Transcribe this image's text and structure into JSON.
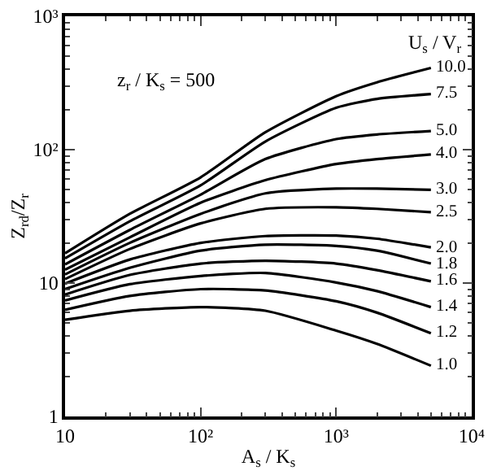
{
  "chart_data": {
    "type": "line",
    "xlabel": "A$_{s}$ / K$_{s}$",
    "ylabel": "Z$_{rd}$/Z$_{r}$",
    "legend_title": "U$_{s}$ / V$_{r}$",
    "annotations": [
      "z$_{r}$ / K$_{s}$ = 500"
    ],
    "log": "xy",
    "grid": false,
    "legend": false,
    "marker": "none",
    "line_style": "solid",
    "xlim": [
      10,
      10000
    ],
    "xticks": [
      10,
      {
        "value": 100,
        "label": "10²"
      },
      {
        "value": 1000,
        "label": "10³"
      },
      {
        "value": 10000,
        "label": "10⁴"
      }
    ],
    "ylim": [
      1,
      1000
    ],
    "yticks": [
      1,
      10,
      {
        "value": 100,
        "label": "10²"
      },
      {
        "value": 1000,
        "label": "10³"
      }
    ],
    "x": [
      10,
      30,
      100,
      300,
      1000,
      2000,
      5000
    ],
    "series": [
      {
        "name": "10.0",
        "color": "#000000",
        "values": [
          16.7,
          33,
          62,
          135,
          252,
          320,
          410
        ]
      },
      {
        "name": "7.5",
        "color": "#000000",
        "values": [
          15.3,
          29,
          54,
          115,
          206,
          240,
          261
        ]
      },
      {
        "name": "5.0",
        "color": "#000000",
        "values": [
          13.8,
          25,
          46,
          85,
          120,
          130,
          138
        ]
      },
      {
        "name": "4.0",
        "color": "#000000",
        "values": [
          12.6,
          22,
          40,
          59,
          78,
          85,
          92
        ]
      },
      {
        "name": "3.0",
        "color": "#000000",
        "values": [
          11.6,
          20,
          33,
          47,
          51,
          51,
          50
        ]
      },
      {
        "name": "2.5",
        "color": "#000000",
        "values": [
          10.7,
          18,
          28,
          36,
          37,
          36,
          34
        ]
      },
      {
        "name": "2.0",
        "color": "#000000",
        "values": [
          9.9,
          15,
          20,
          22.5,
          22.7,
          21.5,
          18.5
        ]
      },
      {
        "name": "1.8",
        "color": "#000000",
        "values": [
          9.0,
          13,
          17.5,
          19.4,
          19,
          17.5,
          14
        ]
      },
      {
        "name": "1.6",
        "color": "#000000",
        "values": [
          8.2,
          11.5,
          14,
          14.7,
          14,
          12.5,
          10.3
        ]
      },
      {
        "name": "1.4",
        "color": "#000000",
        "values": [
          7.4,
          9.8,
          11.3,
          11.9,
          10.1,
          8.7,
          6.6
        ]
      },
      {
        "name": "1.2",
        "color": "#000000",
        "values": [
          6.3,
          8.0,
          9.0,
          8.8,
          7.3,
          6.0,
          4.2
        ]
      },
      {
        "name": "1.0",
        "color": "#000000",
        "values": [
          5.3,
          6.2,
          6.6,
          6.2,
          4.4,
          3.5,
          2.4
        ]
      }
    ]
  }
}
